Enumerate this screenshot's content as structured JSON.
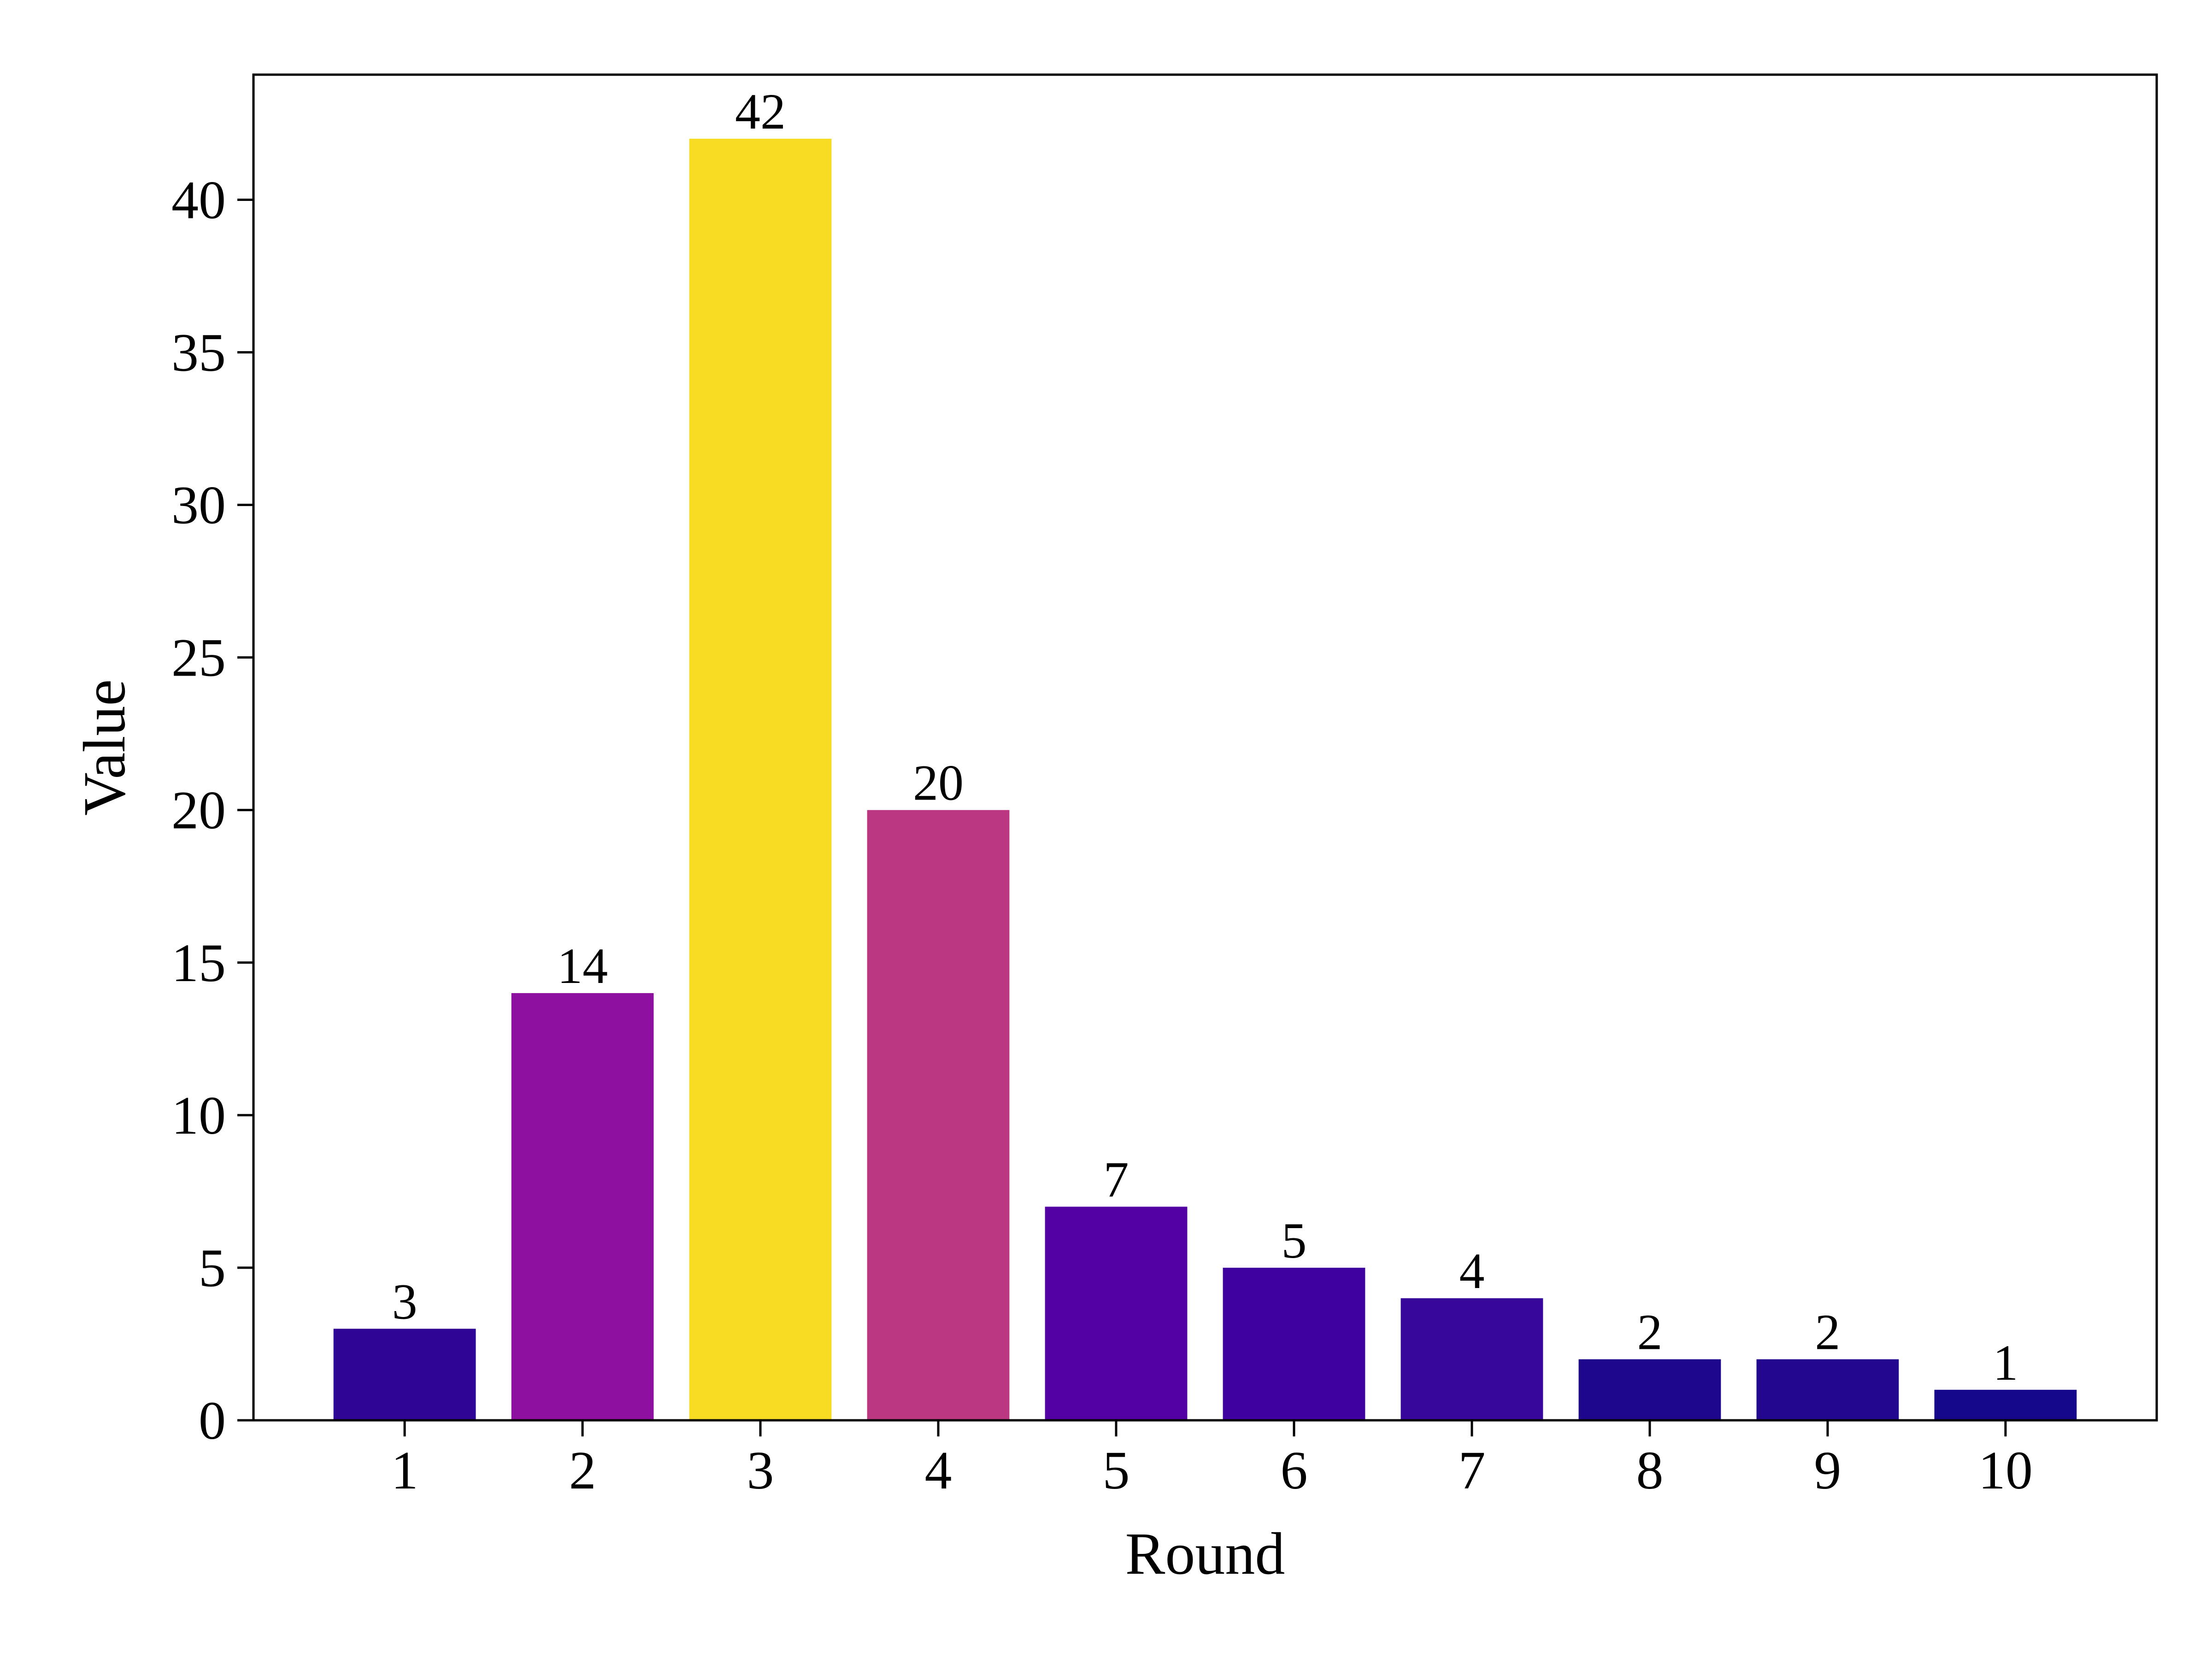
{
  "chart_data": {
    "type": "bar",
    "title": "",
    "xlabel": "Round",
    "ylabel": "Value",
    "categories": [
      "1",
      "2",
      "3",
      "4",
      "5",
      "6",
      "7",
      "8",
      "9",
      "10"
    ],
    "values": [
      3,
      14,
      42,
      20,
      7,
      5,
      4,
      2,
      2,
      1
    ],
    "bar_labels": [
      "3",
      "14",
      "42",
      "20",
      "7",
      "5",
      "4",
      "2",
      "2",
      "1"
    ],
    "bar_colors": [
      "#2e0594",
      "#8e10a0",
      "#f7dc23",
      "#bb3782",
      "#5401a4",
      "#4001a1",
      "#36079a",
      "#1f078d",
      "#23078f",
      "#16088a"
    ],
    "ylim": [
      0,
      44.1
    ],
    "yticks": [
      0,
      5,
      10,
      15,
      20,
      25,
      30,
      35,
      40
    ],
    "ytick_labels": [
      "0",
      "5",
      "10",
      "15",
      "20",
      "25",
      "30",
      "35",
      "40"
    ],
    "grid": false,
    "legend": "none"
  }
}
